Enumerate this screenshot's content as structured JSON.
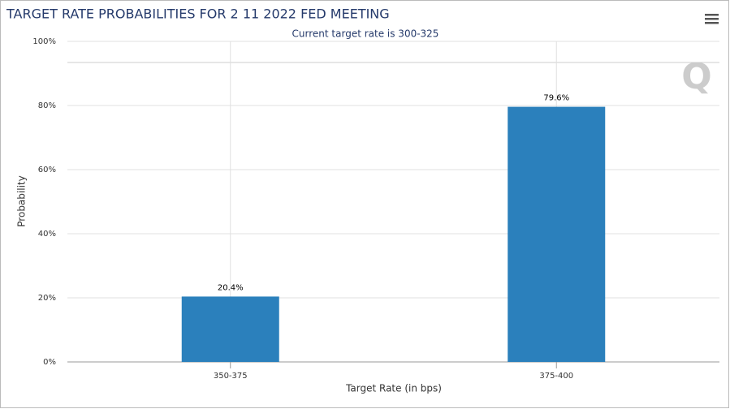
{
  "chart_data": {
    "type": "bar",
    "title": "TARGET RATE PROBABILITIES FOR 2 11 2022 FED MEETING",
    "subtitle": "Current target rate is 300-325",
    "x_label": "Target Rate (in bps)",
    "y_label": "Probability",
    "categories": [
      "350-375",
      "375-400"
    ],
    "values": [
      20.4,
      79.6
    ],
    "value_labels": [
      "20.4%",
      "79.6%"
    ],
    "color": "#2b80bc",
    "ylim": [
      0,
      100
    ],
    "yticks": [
      {
        "value": 0,
        "label": "0%"
      },
      {
        "value": 20,
        "label": "20%"
      },
      {
        "value": 40,
        "label": "40%"
      },
      {
        "value": 60,
        "label": "60%"
      },
      {
        "value": 80,
        "label": "80%"
      },
      {
        "value": 100,
        "label": "100%"
      }
    ],
    "grid": true
  }
}
